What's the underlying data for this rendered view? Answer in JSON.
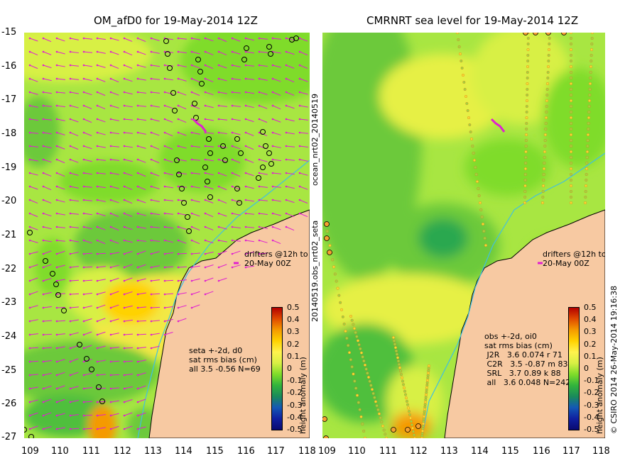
{
  "left_panel": {
    "title": "OM_afD0 for 19-May-2014 12Z",
    "y_ticks": [
      "-15",
      "-16",
      "-17",
      "-18",
      "-19",
      "-20",
      "-21",
      "-22",
      "-23",
      "-24",
      "-25",
      "-26",
      "-27"
    ],
    "x_ticks": [
      "109",
      "110",
      "111",
      "112",
      "113",
      "114",
      "115",
      "116",
      "117",
      "118"
    ],
    "drifters_note": "drifters @12h to\n20-May 00Z",
    "stats": "seta +-2d, d0\nsat rms bias (cm)\nall 3.5 -0.56 N=69"
  },
  "right_panel": {
    "title": "CMRNRT sea level  for 19-May-2014 12Z",
    "x_ticks": [
      "109",
      "110",
      "111",
      "112",
      "113",
      "114",
      "115",
      "116",
      "117",
      "118"
    ],
    "drifters_note": "drifters @12h to\n20-May 00Z",
    "stats": "obs +-2d, oi0\nsat rms bias (cm)\n J2R   3.6 0.074 r 71\n C2R   3.5 -0.87 m 83\n SRL   3.7 0.89 k 88\n all   3.6 0.048 N=242"
  },
  "middle_label_top": "ocean_nrt02_20140519",
  "middle_label_bottom": "20140519.obs_nrt02_seta",
  "right_edge_label": "© CSIRO 2014   26-May-2014 19:16:38",
  "colorbar": {
    "label": "height anomaly (m)",
    "ticks": [
      "0.5",
      "0.4",
      "0.3",
      "0.2",
      "0.1",
      "0",
      "-0.1",
      "-0.2",
      "-0.3",
      "-0.4",
      "-0.5"
    ],
    "colors": [
      "#b30000",
      "#e04a00",
      "#f59a00",
      "#ffd200",
      "#fff34d",
      "#d8f044",
      "#7fdc2a",
      "#33b43c",
      "#1a8a5a",
      "#1458b5",
      "#1020a0",
      "#0a0a70"
    ]
  },
  "colors": {
    "land": "#f7c9a2",
    "sea_base": "#a8e642",
    "wind_arrow": "#e020d0"
  }
}
